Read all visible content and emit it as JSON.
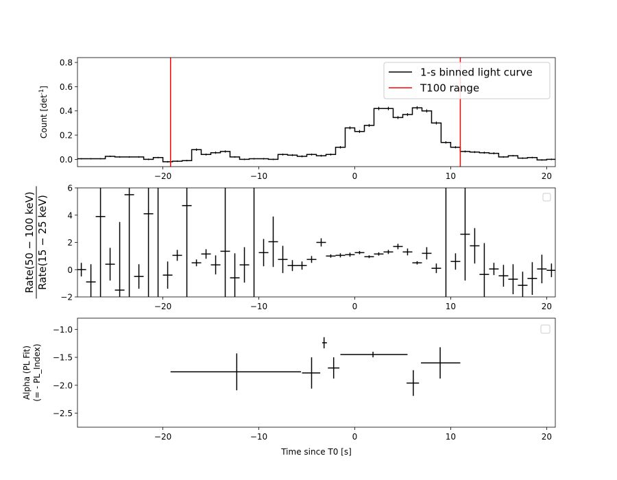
{
  "chart_data": [
    {
      "type": "line",
      "subtype": "step",
      "ylabel_parts": [
        "Count [det",
        "-1",
        "]"
      ],
      "xlim": [
        -28.9,
        20.9
      ],
      "ylim": [
        -0.06,
        0.84
      ],
      "xticks": [
        -20,
        -10,
        0,
        10,
        20
      ],
      "xtick_labels": [
        "−20",
        "−10",
        "0",
        "10",
        "20"
      ],
      "yticks": [
        0.0,
        0.2,
        0.4,
        0.6,
        0.8
      ],
      "ytick_labels": [
        "0.0",
        "0.2",
        "0.4",
        "0.6",
        "0.8"
      ],
      "legend_position": "top-right",
      "series": [
        {
          "name": "1-s binned light curve",
          "color": "#000000",
          "bin_start": -29.0,
          "bin_width": 1.0,
          "values": [
            0.005,
            0.005,
            0.005,
            0.025,
            0.02,
            0.02,
            0.02,
            0.0,
            0.015,
            -0.02,
            -0.015,
            -0.01,
            0.08,
            0.04,
            0.055,
            0.065,
            0.02,
            0.0,
            0.005,
            0.005,
            0.0,
            0.04,
            0.035,
            0.025,
            0.04,
            0.03,
            0.04,
            0.1,
            0.26,
            0.23,
            0.28,
            0.42,
            0.42,
            0.345,
            0.37,
            0.425,
            0.4,
            0.3,
            0.14,
            0.1,
            0.065,
            0.06,
            0.055,
            0.05,
            0.02,
            0.03,
            0.01,
            0.015,
            -0.005,
            0.0,
            0.015,
            0.005,
            0.025,
            0.025
          ],
          "errors": [
            0.005,
            0.005,
            0.005,
            0.006,
            0.006,
            0.006,
            0.006,
            0.006,
            0.006,
            0.006,
            0.006,
            0.006,
            0.01,
            0.008,
            0.009,
            0.009,
            0.006,
            0.006,
            0.006,
            0.006,
            0.006,
            0.008,
            0.008,
            0.008,
            0.008,
            0.008,
            0.008,
            0.01,
            0.012,
            0.012,
            0.012,
            0.014,
            0.014,
            0.012,
            0.012,
            0.014,
            0.013,
            0.012,
            0.01,
            0.009,
            0.008,
            0.008,
            0.008,
            0.008,
            0.006,
            0.006,
            0.006,
            0.006,
            0.006,
            0.006,
            0.006,
            0.006,
            0.006,
            0.006
          ]
        },
        {
          "name": "T100 range",
          "color": "#ff0000",
          "x": [
            -19.2,
            11.0
          ]
        }
      ]
    },
    {
      "type": "scatter",
      "subtype": "errorbar",
      "ylabel_num": "Rate(50 − 100 keV)",
      "ylabel_den": "Rate(15 − 25 keV)",
      "xlim": [
        -28.9,
        20.9
      ],
      "ylim": [
        -2,
        6
      ],
      "xticks": [
        -20,
        -10,
        0,
        10,
        20
      ],
      "xtick_labels": [
        "−20",
        "−10",
        "0",
        "10",
        "20"
      ],
      "yticks": [
        -2,
        0,
        2,
        4,
        6
      ],
      "ytick_labels": [
        "−2",
        "0",
        "2",
        "4",
        "6"
      ],
      "legend_position": "top-right",
      "legend_empty": true,
      "series": [
        {
          "color": "#000000",
          "x": [
            -28.5,
            -27.5,
            -26.5,
            -25.5,
            -24.5,
            -23.5,
            -22.5,
            -21.5,
            -20.5,
            -19.5,
            -18.5,
            -17.5,
            -16.5,
            -15.5,
            -14.5,
            -13.5,
            -12.5,
            -11.5,
            -10.5,
            -9.5,
            -8.5,
            -7.5,
            -6.5,
            -5.5,
            -4.5,
            -3.5,
            -2.5,
            -1.5,
            -0.5,
            0.5,
            1.5,
            2.5,
            3.5,
            4.5,
            5.5,
            6.5,
            7.5,
            8.5,
            9.5,
            10.5,
            11.5,
            12.5,
            13.5,
            14.5,
            15.5,
            16.5,
            17.5,
            18.5,
            19.5,
            20.5
          ],
          "xerr": 0.5,
          "y": [
            0.0,
            -0.9,
            3.9,
            0.4,
            -1.5,
            5.5,
            -0.5,
            4.1,
            -2.5,
            -0.4,
            1.05,
            4.7,
            0.5,
            1.15,
            0.35,
            1.35,
            -0.6,
            0.35,
            -3.0,
            1.25,
            2.05,
            0.75,
            0.3,
            0.3,
            0.75,
            2.0,
            1.0,
            1.05,
            1.1,
            1.25,
            0.95,
            1.15,
            1.3,
            1.7,
            1.3,
            0.5,
            1.2,
            0.1,
            -3.0,
            0.6,
            2.6,
            1.75,
            -0.35,
            0.05,
            -0.45,
            -0.7,
            -1.15,
            -0.65,
            0.05,
            -0.05
          ],
          "yerr": [
            0.5,
            1.3,
            9.0,
            1.2,
            5.0,
            9.0,
            0.9,
            9.0,
            9.0,
            1.0,
            0.4,
            9.0,
            0.25,
            0.35,
            0.7,
            9.0,
            1.8,
            1.3,
            9.0,
            1.0,
            1.85,
            1.0,
            0.4,
            0.3,
            0.25,
            0.3,
            0.12,
            0.15,
            0.15,
            0.12,
            0.1,
            0.12,
            0.15,
            0.2,
            0.25,
            0.12,
            0.45,
            0.35,
            9.0,
            0.6,
            3.4,
            1.3,
            2.3,
            0.45,
            0.8,
            1.1,
            1.0,
            1.2,
            1.05,
            0.5
          ]
        }
      ]
    },
    {
      "type": "scatter",
      "subtype": "errorbar",
      "xlabel": "Time since T0 [s]",
      "ylabel_lines": [
        "Alpha (PL Fit)",
        "(= - PL_Index)"
      ],
      "xlim": [
        -28.9,
        20.9
      ],
      "ylim": [
        -2.75,
        -0.8
      ],
      "xticks": [
        -20,
        -10,
        0,
        10,
        20
      ],
      "xtick_labels": [
        "−20",
        "−10",
        "0",
        "10",
        "20"
      ],
      "yticks": [
        -2.5,
        -2.0,
        -1.5,
        -1.0
      ],
      "ytick_labels": [
        "−2.5",
        "−2.0",
        "−1.5",
        "−1.0"
      ],
      "legend_position": "top-right",
      "legend_empty": true,
      "series": [
        {
          "color": "#000000",
          "x": [
            -12.3,
            -4.5,
            -3.2,
            -2.2,
            1.9,
            6.1,
            8.9
          ],
          "xerr_lo": [
            6.9,
            1.0,
            0.2,
            0.6,
            3.4,
            0.7,
            2.0
          ],
          "xerr_hi": [
            6.7,
            0.9,
            0.3,
            0.6,
            3.6,
            0.6,
            2.1
          ],
          "y": [
            -1.76,
            -1.78,
            -1.24,
            -1.69,
            -1.45,
            -1.96,
            -1.6
          ],
          "yerr": [
            0.33,
            0.28,
            0.1,
            0.19,
            0.05,
            0.23,
            0.28
          ]
        }
      ]
    }
  ]
}
